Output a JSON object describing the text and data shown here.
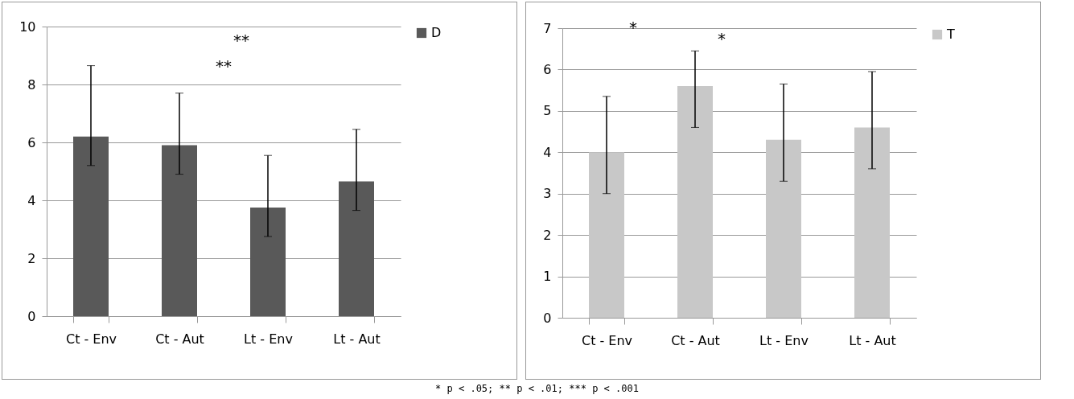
{
  "chart_data": [
    {
      "type": "bar",
      "categories": [
        "Ct - Env",
        "Ct - Aut",
        "Lt - Env",
        "Lt - Aut"
      ],
      "series": [
        {
          "name": "D",
          "color": "#595959",
          "values": [
            6.2,
            5.9,
            3.75,
            4.65
          ],
          "errors": [
            [
              5.2,
              8.65
            ],
            [
              4.9,
              7.7
            ],
            [
              2.75,
              5.55
            ],
            [
              3.65,
              6.45
            ]
          ]
        }
      ],
      "ylim": [
        0,
        10
      ],
      "yticks": [
        0,
        2,
        4,
        6,
        8,
        10
      ],
      "grid": "y",
      "legend": "right",
      "annotations": [
        "**",
        "**",
        "* p < .05; ** p < .01; *** p < .001"
      ]
    },
    {
      "type": "bar",
      "categories": [
        "Ct - Env",
        "Ct - Aut",
        "Lt - Env",
        "Lt - Aut"
      ],
      "series": [
        {
          "name": "T",
          "color": "#c8c8c8",
          "values": [
            4.0,
            5.6,
            4.3,
            4.6
          ],
          "errors": [
            [
              3.0,
              5.35
            ],
            [
              4.6,
              6.45
            ],
            [
              3.3,
              5.65
            ],
            [
              3.6,
              5.95
            ]
          ]
        }
      ],
      "ylim": [
        0,
        7
      ],
      "yticks": [
        0,
        1,
        2,
        3,
        4,
        5,
        6,
        7
      ],
      "grid": "y",
      "legend": "right",
      "annotations": [
        "*",
        "*"
      ]
    }
  ]
}
